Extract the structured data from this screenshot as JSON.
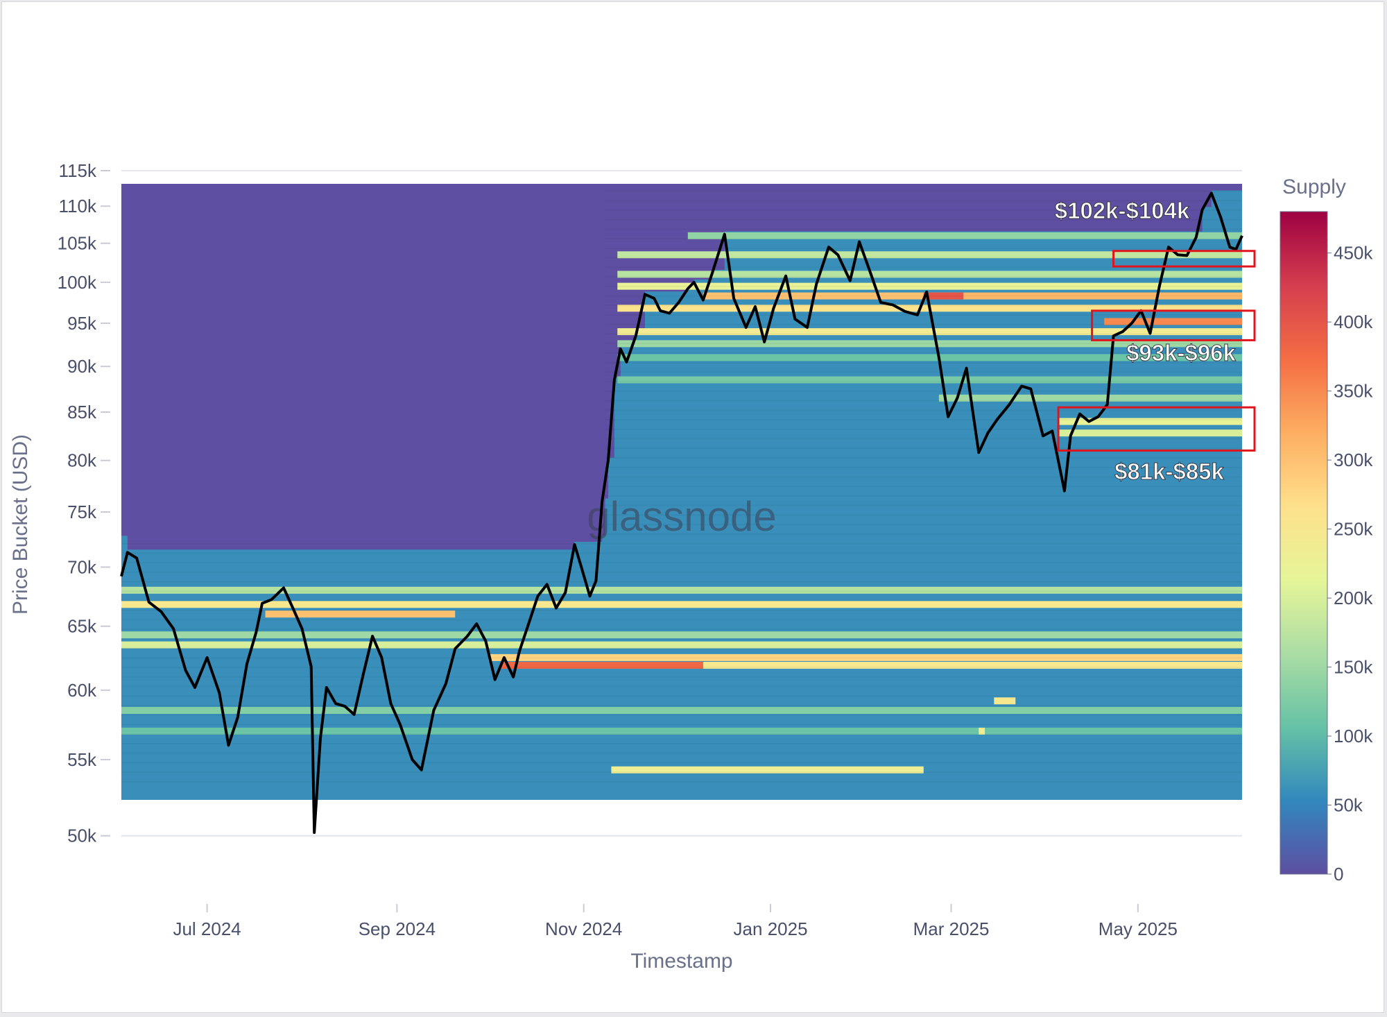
{
  "chart_data": {
    "type": "heatmap",
    "title": "",
    "xlabel": "Timestamp",
    "ylabel": "Price Bucket (USD)",
    "watermark": "glassnode",
    "x_ticks": [
      "Jul 2024",
      "Sep 2024",
      "Nov 2024",
      "Jan 2025",
      "Mar 2025",
      "May 2025"
    ],
    "x_tick_dates": [
      "2024-07-01",
      "2024-09-01",
      "2024-11-01",
      "2025-01-01",
      "2025-03-01",
      "2025-05-01"
    ],
    "xlim": [
      "2024-06-03",
      "2025-06-04"
    ],
    "y_ticks": [
      "50k",
      "55k",
      "60k",
      "65k",
      "70k",
      "75k",
      "80k",
      "85k",
      "90k",
      "95k",
      "100k",
      "105k",
      "110k",
      "115k"
    ],
    "y_tick_values": [
      50000,
      55000,
      60000,
      65000,
      70000,
      75000,
      80000,
      85000,
      90000,
      95000,
      100000,
      105000,
      110000,
      115000
    ],
    "ylim": [
      49000,
      115000
    ],
    "y_scale": "log",
    "heatmap_price_range": [
      53200,
      113500
    ],
    "colorbar": {
      "title": "Supply",
      "ticks": [
        "0",
        "50k",
        "100k",
        "150k",
        "200k",
        "250k",
        "300k",
        "350k",
        "400k",
        "450k"
      ],
      "tick_values": [
        0,
        50000,
        100000,
        150000,
        200000,
        250000,
        300000,
        350000,
        400000,
        450000
      ],
      "range": [
        0,
        480000
      ],
      "colorscale": "Spectral (reversed)",
      "colors": [
        "#5e4fa2",
        "#3288bd",
        "#66c2a5",
        "#abdda4",
        "#e6f598",
        "#fee08b",
        "#fdae61",
        "#f46d43",
        "#d53e4f",
        "#9e0142"
      ]
    },
    "bands": [
      {
        "start": "2024-06-03",
        "end": "2025-06-04",
        "price": 68000,
        "supply": 170000
      },
      {
        "start": "2024-06-03",
        "end": "2025-06-04",
        "price": 66800,
        "supply": 250000
      },
      {
        "start": "2024-07-20",
        "end": "2024-09-20",
        "price": 66000,
        "supply": 300000
      },
      {
        "start": "2024-06-03",
        "end": "2025-06-04",
        "price": 64300,
        "supply": 150000
      },
      {
        "start": "2024-06-03",
        "end": "2025-06-04",
        "price": 63500,
        "supply": 200000
      },
      {
        "start": "2024-10-01",
        "end": "2025-06-04",
        "price": 62500,
        "supply": 280000
      },
      {
        "start": "2024-10-05",
        "end": "2024-12-10",
        "price": 61900,
        "supply": 380000
      },
      {
        "start": "2024-12-10",
        "end": "2025-06-04",
        "price": 61900,
        "supply": 250000
      },
      {
        "start": "2024-06-03",
        "end": "2025-06-04",
        "price": 58500,
        "supply": 130000
      },
      {
        "start": "2024-06-03",
        "end": "2025-06-04",
        "price": 57000,
        "supply": 110000
      },
      {
        "start": "2024-11-10",
        "end": "2025-02-20",
        "price": 54300,
        "supply": 230000
      },
      {
        "start": "2025-03-15",
        "end": "2025-03-22",
        "price": 59200,
        "supply": 250000
      },
      {
        "start": "2025-03-10",
        "end": "2025-03-12",
        "price": 57000,
        "supply": 240000
      },
      {
        "start": "2024-11-12",
        "end": "2025-06-04",
        "price": 101000,
        "supply": 170000
      },
      {
        "start": "2024-11-12",
        "end": "2025-06-04",
        "price": 99500,
        "supply": 220000
      },
      {
        "start": "2024-12-10",
        "end": "2025-03-01",
        "price": 98300,
        "supply": 300000
      },
      {
        "start": "2025-03-01",
        "end": "2025-06-04",
        "price": 98300,
        "supply": 310000
      },
      {
        "start": "2025-02-20",
        "end": "2025-03-05",
        "price": 98300,
        "supply": 400000
      },
      {
        "start": "2024-11-12",
        "end": "2025-06-04",
        "price": 96800,
        "supply": 260000
      },
      {
        "start": "2025-04-20",
        "end": "2025-06-04",
        "price": 95200,
        "supply": 350000
      },
      {
        "start": "2024-11-12",
        "end": "2025-06-04",
        "price": 94000,
        "supply": 240000
      },
      {
        "start": "2024-11-12",
        "end": "2025-06-04",
        "price": 92600,
        "supply": 150000
      },
      {
        "start": "2024-11-12",
        "end": "2025-06-04",
        "price": 103500,
        "supply": 180000
      },
      {
        "start": "2024-12-05",
        "end": "2025-06-04",
        "price": 106000,
        "supply": 140000
      },
      {
        "start": "2025-04-05",
        "end": "2025-06-04",
        "price": 84000,
        "supply": 220000
      },
      {
        "start": "2025-04-05",
        "end": "2025-06-04",
        "price": 82800,
        "supply": 200000
      },
      {
        "start": "2025-02-25",
        "end": "2025-06-04",
        "price": 86500,
        "supply": 150000
      },
      {
        "start": "2024-11-12",
        "end": "2025-06-04",
        "price": 88500,
        "supply": 120000
      },
      {
        "start": "2024-11-12",
        "end": "2025-06-04",
        "price": 91000,
        "supply": 110000
      }
    ],
    "series": [
      {
        "type": "line",
        "color": "#000000",
        "x": [
          "2024-06-03",
          "2024-06-05",
          "2024-06-08",
          "2024-06-12",
          "2024-06-16",
          "2024-06-20",
          "2024-06-24",
          "2024-06-27",
          "2024-07-01",
          "2024-07-05",
          "2024-07-08",
          "2024-07-11",
          "2024-07-14",
          "2024-07-17",
          "2024-07-19",
          "2024-07-22",
          "2024-07-26",
          "2024-07-29",
          "2024-08-01",
          "2024-08-04",
          "2024-08-05",
          "2024-08-07",
          "2024-08-09",
          "2024-08-12",
          "2024-08-15",
          "2024-08-18",
          "2024-08-21",
          "2024-08-24",
          "2024-08-27",
          "2024-08-30",
          "2024-09-02",
          "2024-09-06",
          "2024-09-09",
          "2024-09-13",
          "2024-09-17",
          "2024-09-20",
          "2024-09-24",
          "2024-09-27",
          "2024-09-30",
          "2024-10-03",
          "2024-10-06",
          "2024-10-09",
          "2024-10-11",
          "2024-10-14",
          "2024-10-17",
          "2024-10-20",
          "2024-10-23",
          "2024-10-26",
          "2024-10-29",
          "2024-10-31",
          "2024-11-03",
          "2024-11-05",
          "2024-11-07",
          "2024-11-09",
          "2024-11-11",
          "2024-11-13",
          "2024-11-15",
          "2024-11-18",
          "2024-11-21",
          "2024-11-24",
          "2024-11-26",
          "2024-11-29",
          "2024-12-02",
          "2024-12-05",
          "2024-12-07",
          "2024-12-10",
          "2024-12-13",
          "2024-12-17",
          "2024-12-20",
          "2024-12-24",
          "2024-12-27",
          "2024-12-30",
          "2025-01-02",
          "2025-01-06",
          "2025-01-09",
          "2025-01-13",
          "2025-01-16",
          "2025-01-20",
          "2025-01-23",
          "2025-01-27",
          "2025-01-30",
          "2025-02-03",
          "2025-02-06",
          "2025-02-10",
          "2025-02-14",
          "2025-02-18",
          "2025-02-21",
          "2025-02-25",
          "2025-02-28",
          "2025-03-03",
          "2025-03-06",
          "2025-03-10",
          "2025-03-13",
          "2025-03-16",
          "2025-03-20",
          "2025-03-24",
          "2025-03-27",
          "2025-03-31",
          "2025-04-03",
          "2025-04-07",
          "2025-04-09",
          "2025-04-12",
          "2025-04-15",
          "2025-04-18",
          "2025-04-21",
          "2025-04-23",
          "2025-04-26",
          "2025-04-29",
          "2025-05-02",
          "2025-05-05",
          "2025-05-08",
          "2025-05-11",
          "2025-05-14",
          "2025-05-17",
          "2025-05-20",
          "2025-05-22",
          "2025-05-25",
          "2025-05-28",
          "2025-05-31",
          "2025-06-02",
          "2025-06-04"
        ],
        "y": [
          69200,
          71300,
          70800,
          67000,
          66200,
          64800,
          61500,
          60200,
          62500,
          59800,
          56000,
          58000,
          62000,
          64500,
          66900,
          67200,
          68200,
          66500,
          64800,
          61800,
          50200,
          56500,
          60200,
          59000,
          58800,
          58200,
          61200,
          64200,
          62500,
          59000,
          57500,
          55000,
          54300,
          58500,
          60500,
          63200,
          64200,
          65200,
          63800,
          60800,
          62500,
          61000,
          63000,
          65200,
          67500,
          68500,
          66500,
          67800,
          72000,
          70200,
          67500,
          68800,
          76000,
          80000,
          88500,
          92000,
          90500,
          93500,
          98500,
          98000,
          96500,
          96200,
          97500,
          99200,
          100000,
          97800,
          101200,
          106200,
          98000,
          94500,
          97000,
          92800,
          96800,
          100800,
          95500,
          94500,
          99800,
          104500,
          103500,
          100200,
          105200,
          100800,
          97500,
          97200,
          96400,
          96000,
          98800,
          91000,
          84500,
          86500,
          89800,
          80800,
          82800,
          84200,
          85800,
          87800,
          87500,
          82500,
          83000,
          77000,
          82500,
          84800,
          84000,
          84500,
          85800,
          93500,
          94000,
          95000,
          96500,
          93800,
          99500,
          104500,
          103500,
          103400,
          105800,
          109500,
          111800,
          108500,
          104500,
          104200,
          106000
        ]
      }
    ],
    "annotations": [
      {
        "text": "$102k-$104k",
        "price_range": [
          102000,
          104000
        ],
        "start": "2025-04-23",
        "end": "2025-06-04"
      },
      {
        "text": "$93k-$96k",
        "price_range": [
          93000,
          96500
        ],
        "start": "2025-04-16",
        "end": "2025-06-04"
      },
      {
        "text": "$81k-$85k",
        "price_range": [
          81000,
          85500
        ],
        "start": "2025-04-05",
        "end": "2025-06-04"
      }
    ]
  }
}
